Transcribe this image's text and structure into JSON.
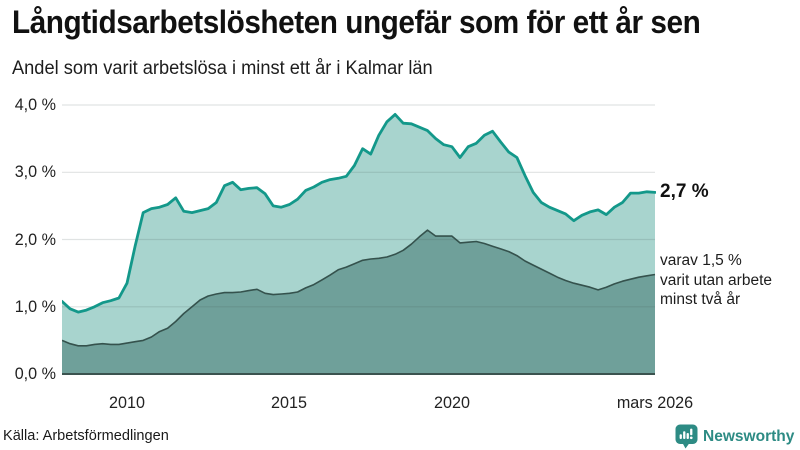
{
  "header": {
    "title": "Långtidsarbetslösheten ungefär som för ett år sen",
    "subtitle": "Andel som varit arbetslösa i minst ett år i Kalmar län"
  },
  "annotations": {
    "total_value_label": "2,7 %",
    "varav": {
      "line1": "varav 1,5 %",
      "line2": "varit utan arbete",
      "line3": "minst två år"
    }
  },
  "footer": {
    "source": "Källa: Arbetsförmedlingen",
    "brand_name": "Newsworthy"
  },
  "colors": {
    "total_line": "#13988a",
    "total_fill": "#a8d4ce",
    "subset_line": "#35524d",
    "subset_fill": "#6fa09a",
    "gridline": "rgba(60,80,78,0.16)",
    "baseline": "#3b534f",
    "brand_teal": "#2d8b84"
  },
  "chart_data": {
    "type": "area",
    "title": "Långtidsarbetslösheten ungefär som för ett år sen",
    "subtitle": "Andel som varit arbetslösa i minst ett år i Kalmar län",
    "xlim": [
      2008,
      2026.25
    ],
    "ylim": [
      0,
      4
    ],
    "grid": true,
    "y_ticks": [
      {
        "label": "0,0 %",
        "value": 0
      },
      {
        "label": "1,0 %",
        "value": 1
      },
      {
        "label": "2,0 %",
        "value": 2
      },
      {
        "label": "3,0 %",
        "value": 3
      },
      {
        "label": "4,0 %",
        "value": 4
      }
    ],
    "x_ticks": [
      {
        "label": "2010",
        "year": 2010
      },
      {
        "label": "2015",
        "year": 2015
      },
      {
        "label": "2020",
        "year": 2020
      },
      {
        "label": "mars 2026",
        "year": 2026.25
      }
    ],
    "x": [
      2008.0,
      2008.25,
      2008.5,
      2008.75,
      2009.0,
      2009.25,
      2009.5,
      2009.75,
      2010.0,
      2010.25,
      2010.5,
      2010.75,
      2011.0,
      2011.25,
      2011.5,
      2011.75,
      2012.0,
      2012.25,
      2012.5,
      2012.75,
      2013.0,
      2013.25,
      2013.5,
      2013.75,
      2014.0,
      2014.25,
      2014.5,
      2014.75,
      2015.0,
      2015.25,
      2015.5,
      2015.75,
      2016.0,
      2016.25,
      2016.5,
      2016.75,
      2017.0,
      2017.25,
      2017.5,
      2017.75,
      2018.0,
      2018.25,
      2018.5,
      2018.75,
      2019.0,
      2019.25,
      2019.5,
      2019.75,
      2020.0,
      2020.25,
      2020.5,
      2020.75,
      2021.0,
      2021.25,
      2021.5,
      2021.75,
      2022.0,
      2022.25,
      2022.5,
      2022.75,
      2023.0,
      2023.25,
      2023.5,
      2023.75,
      2024.0,
      2024.25,
      2024.5,
      2024.75,
      2025.0,
      2025.25,
      2025.5,
      2025.75,
      2026.0,
      2026.25
    ],
    "series": [
      {
        "name": "Arbetslösa minst ett år (andel)",
        "latest_label": "2,7 %",
        "values": [
          1.08,
          0.97,
          0.92,
          0.95,
          1.0,
          1.06,
          1.09,
          1.13,
          1.35,
          1.9,
          2.4,
          2.46,
          2.48,
          2.52,
          2.62,
          2.42,
          2.4,
          2.43,
          2.46,
          2.55,
          2.8,
          2.85,
          2.74,
          2.76,
          2.77,
          2.68,
          2.5,
          2.48,
          2.52,
          2.6,
          2.73,
          2.78,
          2.85,
          2.89,
          2.91,
          2.94,
          3.1,
          3.35,
          3.27,
          3.55,
          3.75,
          3.86,
          3.73,
          3.72,
          3.67,
          3.62,
          3.5,
          3.41,
          3.38,
          3.22,
          3.38,
          3.43,
          3.55,
          3.61,
          3.45,
          3.3,
          3.22,
          2.95,
          2.7,
          2.55,
          2.48,
          2.43,
          2.38,
          2.28,
          2.36,
          2.41,
          2.44,
          2.37,
          2.48,
          2.55,
          2.69,
          2.69,
          2.71,
          2.7
        ]
      },
      {
        "name": "varav utan arbete minst två år (andel)",
        "latest_label": "1,5 %",
        "values": [
          0.5,
          0.45,
          0.42,
          0.42,
          0.44,
          0.45,
          0.44,
          0.44,
          0.46,
          0.48,
          0.5,
          0.55,
          0.63,
          0.68,
          0.78,
          0.9,
          1.0,
          1.1,
          1.16,
          1.19,
          1.21,
          1.21,
          1.22,
          1.24,
          1.26,
          1.2,
          1.18,
          1.19,
          1.2,
          1.22,
          1.28,
          1.33,
          1.4,
          1.47,
          1.55,
          1.59,
          1.64,
          1.69,
          1.71,
          1.72,
          1.74,
          1.78,
          1.84,
          1.93,
          2.04,
          2.14,
          2.05,
          2.05,
          2.05,
          1.95,
          1.96,
          1.97,
          1.94,
          1.9,
          1.86,
          1.82,
          1.76,
          1.68,
          1.62,
          1.56,
          1.5,
          1.44,
          1.39,
          1.35,
          1.32,
          1.29,
          1.25,
          1.29,
          1.34,
          1.38,
          1.41,
          1.44,
          1.46,
          1.48
        ]
      }
    ]
  }
}
